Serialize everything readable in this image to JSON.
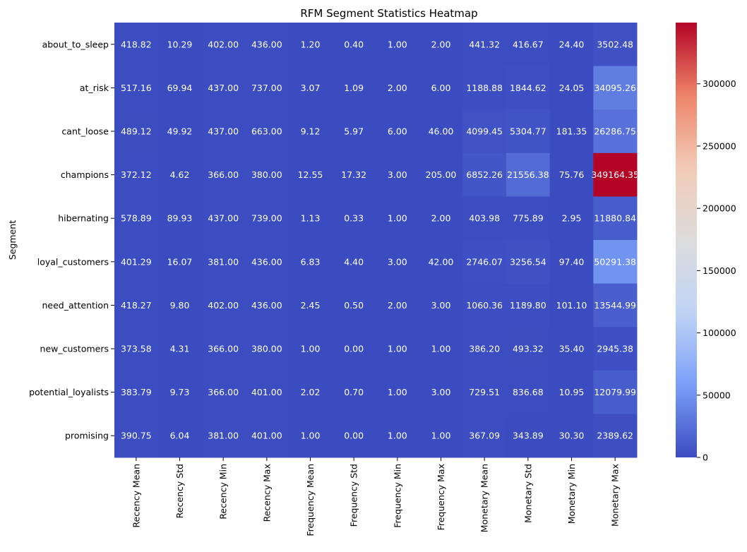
{
  "chart_data": {
    "type": "heatmap",
    "title": "RFM Segment Statistics Heatmap",
    "ylabel": "Segment",
    "xlabel": "",
    "colormap": "coolwarm",
    "colormap_stops": [
      "#3b4cc0",
      "#7b9ff9",
      "#c0d4f5",
      "#dddcdc",
      "#f2cbb7",
      "#ee8468",
      "#b40426"
    ],
    "columns": [
      "Recency Mean",
      "Recency Std",
      "Recency Min",
      "Recency Max",
      "Frequency Mean",
      "Frequency Std",
      "Frequency Min",
      "Frequency Max",
      "Monetary Mean",
      "Monetary Std",
      "Monetary Min",
      "Monetary Max"
    ],
    "rows": [
      "about_to_sleep",
      "at_risk",
      "cant_loose",
      "champions",
      "hibernating",
      "loyal_customers",
      "need_attention",
      "new_customers",
      "potential_loyalists",
      "promising"
    ],
    "values": [
      [
        418.82,
        10.29,
        402.0,
        436.0,
        1.2,
        0.4,
        1.0,
        2.0,
        441.32,
        416.67,
        24.4,
        3502.48
      ],
      [
        517.16,
        69.94,
        437.0,
        737.0,
        3.07,
        1.09,
        2.0,
        6.0,
        1188.88,
        1844.62,
        24.05,
        34095.26
      ],
      [
        489.12,
        49.92,
        437.0,
        663.0,
        9.12,
        5.97,
        6.0,
        46.0,
        4099.45,
        5304.77,
        181.35,
        26286.75
      ],
      [
        372.12,
        4.62,
        366.0,
        380.0,
        12.55,
        17.32,
        3.0,
        205.0,
        6852.26,
        21556.38,
        75.76,
        349164.35
      ],
      [
        578.89,
        89.93,
        437.0,
        739.0,
        1.13,
        0.33,
        1.0,
        2.0,
        403.98,
        775.89,
        2.95,
        11880.84
      ],
      [
        401.29,
        16.07,
        381.0,
        436.0,
        6.83,
        4.4,
        3.0,
        42.0,
        2746.07,
        3256.54,
        97.4,
        50291.38
      ],
      [
        418.27,
        9.8,
        402.0,
        436.0,
        2.45,
        0.5,
        2.0,
        3.0,
        1060.36,
        1189.8,
        101.1,
        13544.99
      ],
      [
        373.58,
        4.31,
        366.0,
        380.0,
        1.0,
        0.0,
        1.0,
        1.0,
        386.2,
        493.32,
        35.4,
        2945.38
      ],
      [
        383.79,
        9.73,
        366.0,
        401.0,
        2.02,
        0.7,
        1.0,
        3.0,
        729.51,
        836.68,
        10.95,
        12079.99
      ],
      [
        390.75,
        6.04,
        381.0,
        401.0,
        1.0,
        0.0,
        1.0,
        1.0,
        367.09,
        343.89,
        30.3,
        2389.62
      ]
    ],
    "value_format_decimals": 2,
    "colorbar": {
      "min": 0,
      "max": 349164.35,
      "ticks": [
        0,
        50000,
        100000,
        150000,
        200000,
        250000,
        300000
      ]
    }
  }
}
